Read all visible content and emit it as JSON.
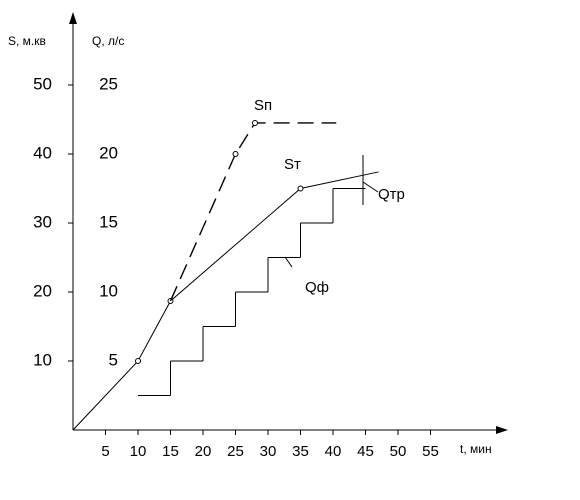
{
  "chart_data": {
    "type": "line",
    "y_label": "S, м.кв",
    "y2_label": "Q, л/с",
    "x_label": "t, мин",
    "xlim": [
      0,
      66
    ],
    "xticks": [
      5,
      10,
      15,
      20,
      25,
      30,
      35,
      40,
      45,
      50,
      55
    ],
    "ylim": [
      0,
      60
    ],
    "yticks": [
      10,
      20,
      30,
      40,
      50
    ],
    "y2lim": [
      0,
      30
    ],
    "y2ticks": [
      5,
      10,
      15,
      20,
      25
    ],
    "series": [
      {
        "name": "Sт",
        "color": "#000000",
        "dash": false,
        "x": [
          0,
          10,
          15,
          35,
          47
        ],
        "values": [
          0,
          10,
          18.7,
          35,
          37.4
        ],
        "markers": [
          false,
          true,
          true,
          true,
          false
        ]
      },
      {
        "name": "Sп",
        "color": "#000000",
        "dash": true,
        "x": [
          15,
          25,
          28,
          40.5
        ],
        "values": [
          18.7,
          40,
          44.5,
          44.5
        ],
        "markers": [
          false,
          true,
          true,
          false
        ]
      },
      {
        "name": "Qф",
        "type": "step",
        "axis": "y2",
        "color": "#000000",
        "bins": [
          10,
          15,
          20,
          25,
          30,
          35,
          40,
          45
        ],
        "values": [
          2.5,
          5,
          7.5,
          10,
          12.5,
          15,
          17.5
        ]
      }
    ],
    "annotations": [
      "Qтр"
    ]
  }
}
